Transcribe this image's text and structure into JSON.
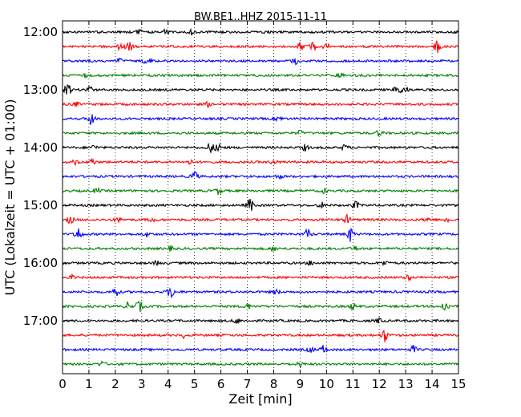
{
  "chart_data": {
    "type": "line",
    "title": "BW.BE1..HHZ 2015-11-11",
    "xlabel": "Zeit  [min]",
    "ylabel": "UTC (Lokalzeit = UTC + 01:00)",
    "xlim": [
      0,
      15
    ],
    "x_ticks": [
      "0",
      "1",
      "2",
      "3",
      "4",
      "5",
      "6",
      "7",
      "8",
      "9",
      "10",
      "11",
      "12",
      "13",
      "14",
      "15"
    ],
    "y_ticks": [
      "12:00",
      "13:00",
      "14:00",
      "15:00",
      "16:00",
      "17:00"
    ],
    "grid": "vertical dotted",
    "trace_colors": [
      "#000000",
      "#ff0000",
      "#0000ff",
      "#008000"
    ],
    "series": [
      {
        "start": "12:00",
        "events": [
          [
            2.9,
            0.3
          ],
          [
            3.9,
            0.3
          ],
          [
            4.9,
            0.3
          ]
        ]
      },
      {
        "start": "12:15",
        "events": [
          [
            2.2,
            0.5
          ],
          [
            2.5,
            1.0
          ],
          [
            9.0,
            0.5
          ],
          [
            9.5,
            0.7
          ],
          [
            10.0,
            0.5
          ],
          [
            14.2,
            0.8
          ]
        ]
      },
      {
        "start": "12:30",
        "events": [
          [
            2.2,
            0.4
          ],
          [
            3.2,
            1.0
          ],
          [
            8.8,
            0.4
          ]
        ]
      },
      {
        "start": "12:45",
        "events": [
          [
            0.8,
            0.3
          ],
          [
            10.5,
            0.3
          ]
        ]
      },
      {
        "start": "13:00",
        "events": [
          [
            0.2,
            0.9
          ],
          [
            1.0,
            0.6
          ],
          [
            12.7,
            0.9
          ],
          [
            13.0,
            0.4
          ]
        ]
      },
      {
        "start": "13:15",
        "events": [
          [
            0.5,
            0.3
          ],
          [
            5.5,
            0.3
          ]
        ]
      },
      {
        "start": "13:30",
        "events": [
          [
            1.1,
            1.0
          ],
          [
            8.2,
            0.3
          ]
        ]
      },
      {
        "start": "13:45",
        "events": [
          [
            9.0,
            0.3
          ],
          [
            12.0,
            0.4
          ]
        ]
      },
      {
        "start": "14:00",
        "events": [
          [
            1.2,
            0.3
          ],
          [
            5.6,
            0.8
          ],
          [
            5.9,
            0.6
          ],
          [
            9.2,
            0.4
          ],
          [
            10.7,
            0.4
          ]
        ]
      },
      {
        "start": "14:15",
        "events": [
          [
            0.5,
            0.3
          ],
          [
            1.1,
            0.5
          ],
          [
            4.8,
            0.3
          ],
          [
            8.0,
            0.3
          ]
        ]
      },
      {
        "start": "14:30",
        "events": [
          [
            5.0,
            0.8
          ],
          [
            8.2,
            0.3
          ]
        ]
      },
      {
        "start": "14:45",
        "events": [
          [
            1.3,
            0.3
          ],
          [
            5.9,
            0.4
          ],
          [
            9.9,
            0.3
          ]
        ]
      },
      {
        "start": "15:00",
        "events": [
          [
            7.1,
            1.0
          ],
          [
            9.8,
            0.4
          ],
          [
            11.1,
            0.5
          ]
        ]
      },
      {
        "start": "15:15",
        "events": [
          [
            0.3,
            0.5
          ],
          [
            2.1,
            0.3
          ],
          [
            3.4,
            0.3
          ],
          [
            10.8,
            0.6
          ],
          [
            13.8,
            0.3
          ],
          [
            14.6,
            0.4
          ]
        ]
      },
      {
        "start": "15:30",
        "events": [
          [
            0.6,
            1.0
          ],
          [
            3.2,
            0.3
          ],
          [
            9.3,
            0.7
          ],
          [
            10.9,
            1.0
          ]
        ]
      },
      {
        "start": "15:45",
        "events": [
          [
            4.1,
            0.3
          ],
          [
            8.0,
            0.3
          ],
          [
            11.1,
            0.3
          ]
        ]
      },
      {
        "start": "16:00",
        "events": [
          [
            3.6,
            0.3
          ],
          [
            9.4,
            0.3
          ],
          [
            12.2,
            0.3
          ]
        ]
      },
      {
        "start": "16:15",
        "events": [
          [
            0.4,
            0.3
          ],
          [
            13.1,
            0.3
          ]
        ]
      },
      {
        "start": "16:30",
        "events": [
          [
            2.0,
            0.7
          ],
          [
            4.1,
            0.9
          ],
          [
            8.1,
            0.3
          ]
        ]
      },
      {
        "start": "16:45",
        "events": [
          [
            2.5,
            0.6
          ],
          [
            2.9,
            0.8
          ],
          [
            7.0,
            0.4
          ],
          [
            11.0,
            0.4
          ],
          [
            14.5,
            0.9
          ]
        ]
      },
      {
        "start": "17:00",
        "events": [
          [
            6.6,
            0.4
          ],
          [
            12.0,
            0.3
          ]
        ]
      },
      {
        "start": "17:15",
        "events": [
          [
            4.6,
            0.3
          ],
          [
            12.2,
            0.9
          ]
        ]
      },
      {
        "start": "17:30",
        "events": [
          [
            9.4,
            0.4
          ],
          [
            9.9,
            0.6
          ],
          [
            13.3,
            0.5
          ]
        ]
      },
      {
        "start": "17:45",
        "events": [
          [
            1.5,
            0.3
          ],
          [
            9.0,
            0.3
          ]
        ]
      }
    ]
  }
}
